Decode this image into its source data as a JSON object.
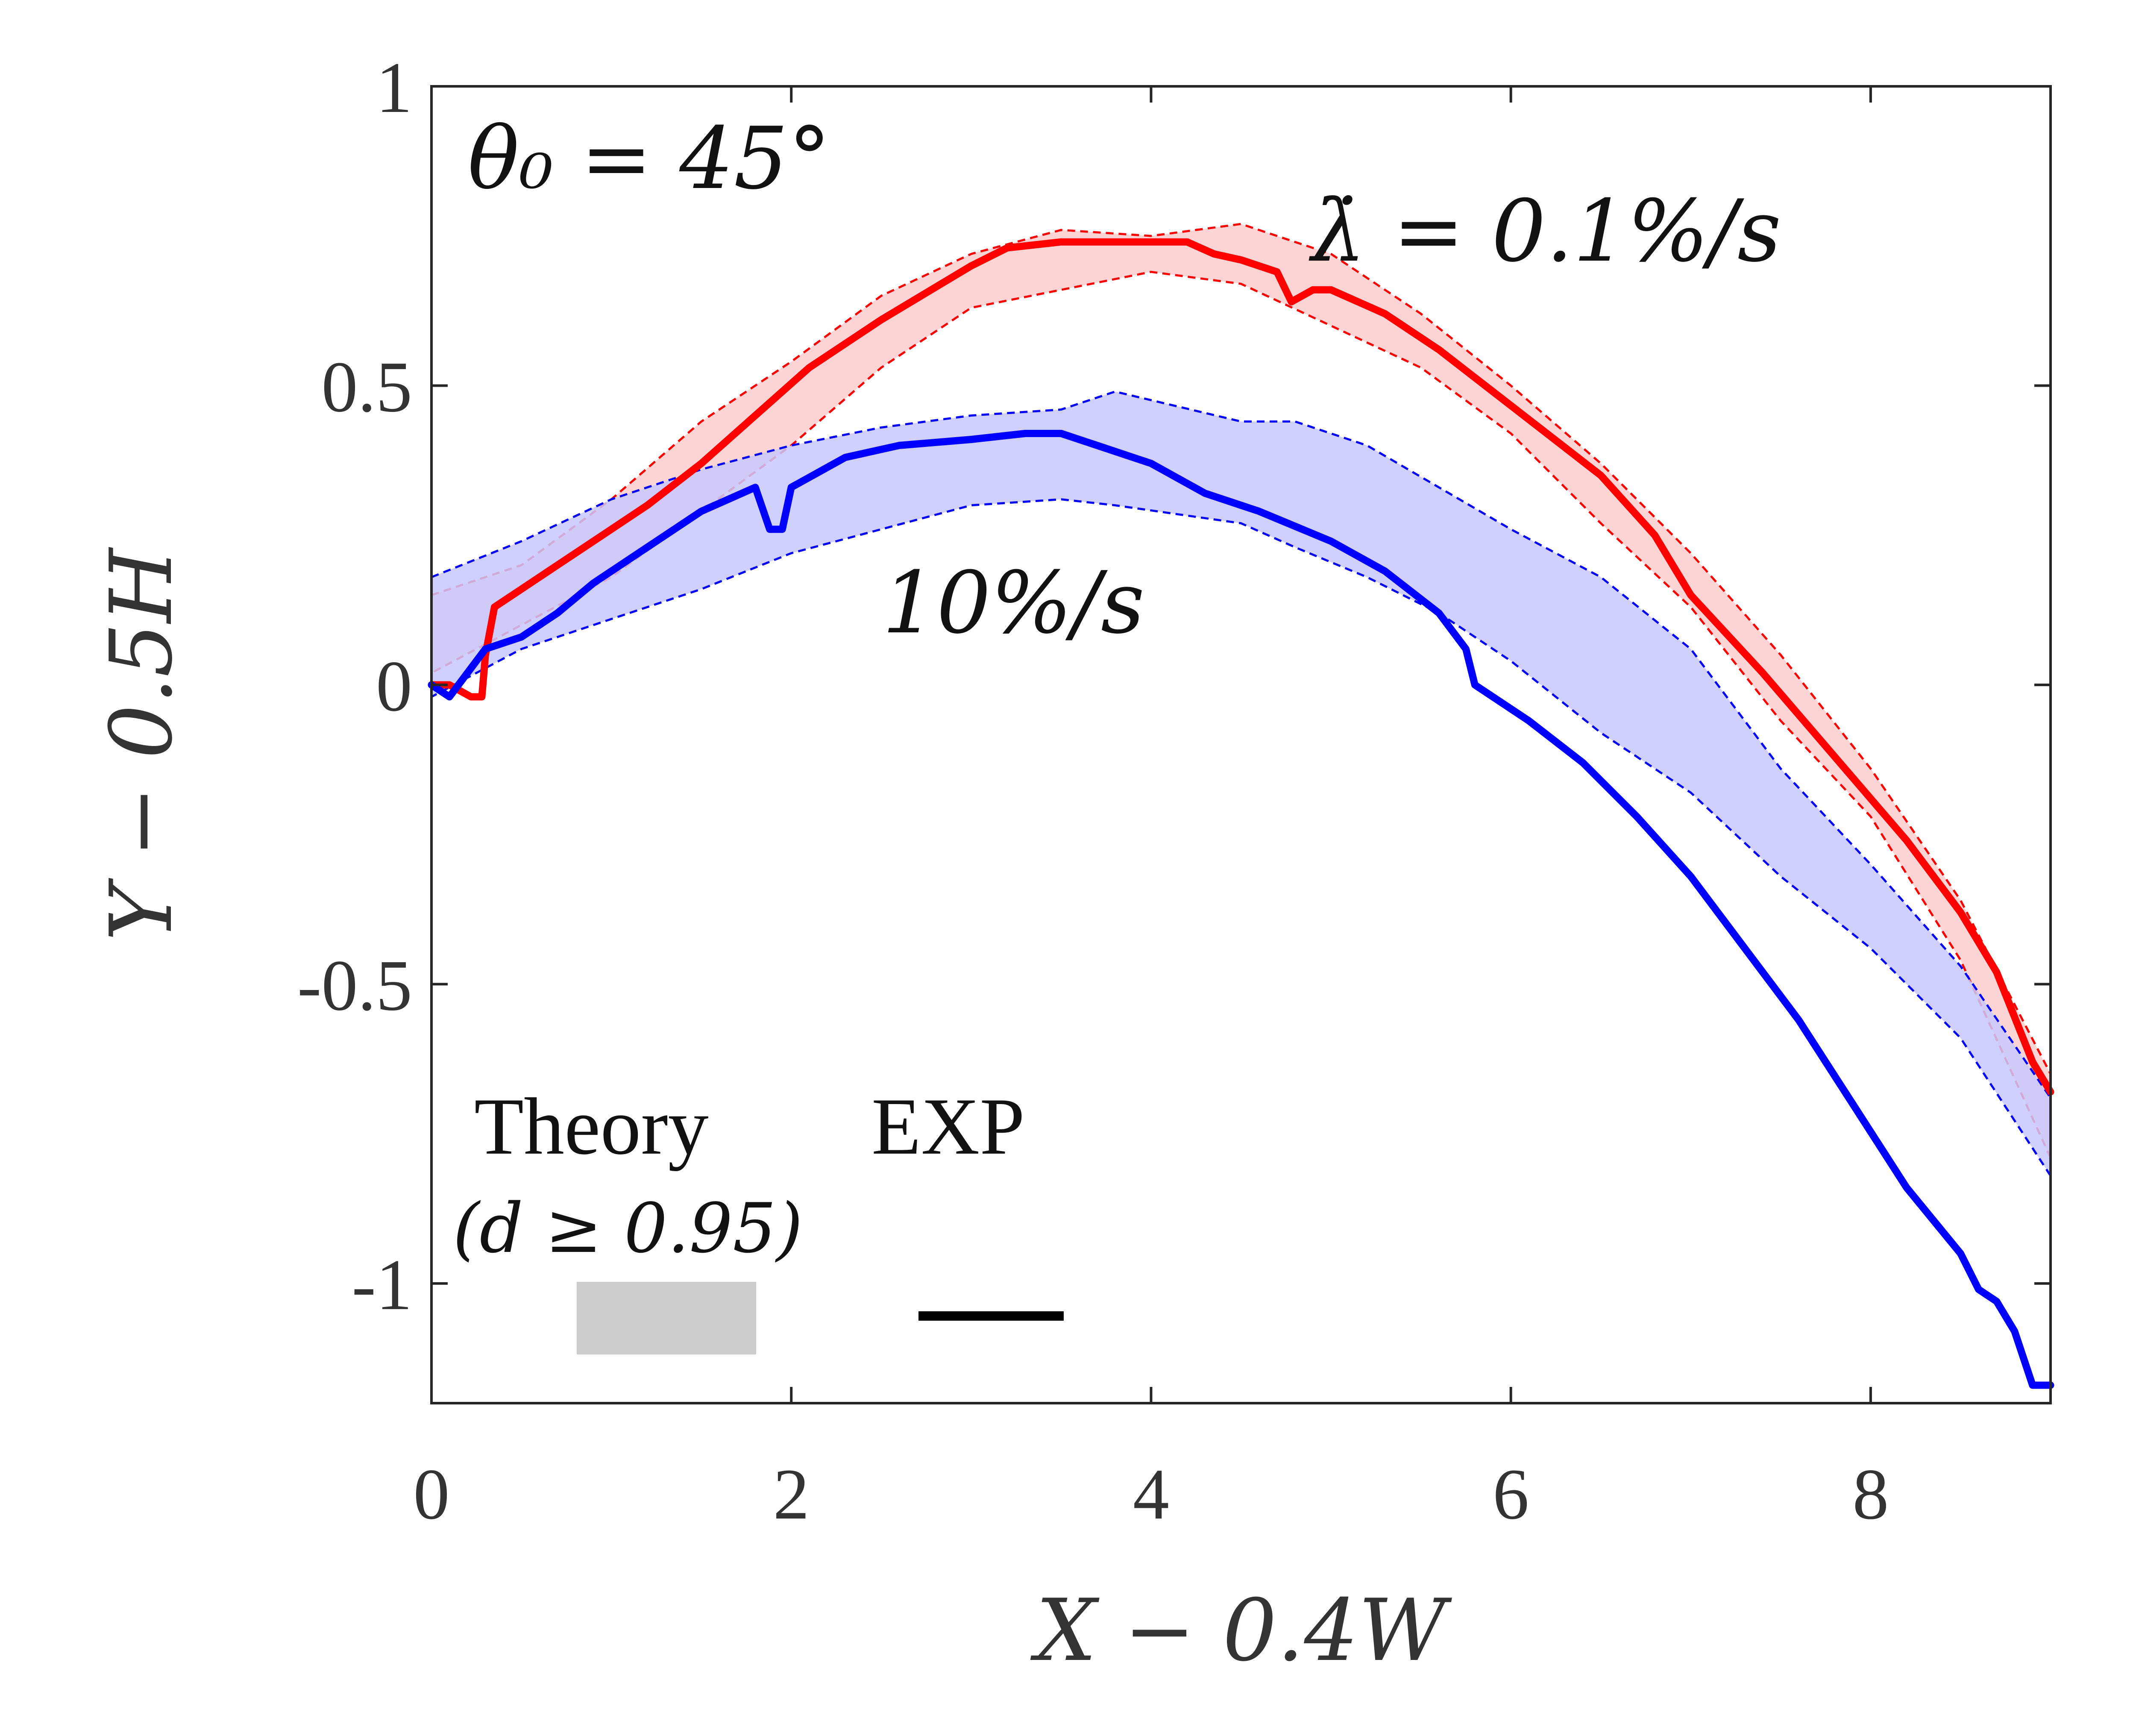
{
  "chart_data": {
    "type": "line",
    "xlabel": "X − 0.4W",
    "ylabel": "Y − 0.5H",
    "xlim": [
      0,
      9
    ],
    "ylim": [
      -1.2,
      1
    ],
    "xticks": [
      0,
      2,
      4,
      6,
      8
    ],
    "yticks": [
      1,
      0.5,
      0,
      -0.5,
      -1
    ],
    "xtick_labels": [
      "0",
      "2",
      "4",
      "6",
      "8"
    ],
    "ytick_labels": [
      "1",
      "0.5",
      "0",
      "-0.5",
      "-1"
    ],
    "grid": false,
    "annotations": {
      "theta": "θ₀ = 45°",
      "rate_slow": "λ̇ = 0.1%/s",
      "rate_fast": "10%/s"
    },
    "legend": {
      "theory_label": "Theory",
      "theory_sub": "(d ≥ 0.95)",
      "exp_label": "EXP",
      "placement": "bottom-left"
    },
    "colors": {
      "slow": "#ff0000",
      "slow_band": "#ffcccc",
      "fast": "#0000ff",
      "fast_band": "#c8c8ff",
      "theory_swatch": "#cccccc",
      "exp_swatch": "#000000"
    },
    "series": [
      {
        "name": "0.1%/s",
        "role": "experiment",
        "x": [
          0.0,
          0.1,
          0.22,
          0.28,
          0.3,
          0.35,
          0.5,
          0.7,
          0.95,
          1.2,
          1.5,
          1.8,
          2.1,
          2.5,
          3.0,
          3.2,
          3.5,
          4.0,
          4.2,
          4.35,
          4.5,
          4.7,
          4.78,
          4.9,
          5.0,
          5.3,
          5.6,
          5.9,
          6.2,
          6.5,
          6.8,
          7.0,
          7.4,
          7.8,
          8.2,
          8.5,
          8.7,
          8.9,
          9.0
        ],
        "y": [
          0.0,
          0.0,
          -0.02,
          -0.02,
          0.05,
          0.13,
          0.16,
          0.2,
          0.25,
          0.3,
          0.37,
          0.45,
          0.53,
          0.61,
          0.7,
          0.73,
          0.74,
          0.74,
          0.74,
          0.72,
          0.71,
          0.69,
          0.64,
          0.66,
          0.66,
          0.62,
          0.56,
          0.49,
          0.42,
          0.35,
          0.25,
          0.15,
          0.02,
          -0.12,
          -0.26,
          -0.38,
          -0.48,
          -0.63,
          -0.68
        ]
      },
      {
        "name": "10%/s",
        "role": "experiment",
        "x": [
          0.0,
          0.1,
          0.2,
          0.3,
          0.5,
          0.7,
          0.9,
          1.2,
          1.5,
          1.8,
          1.88,
          1.95,
          2.0,
          2.3,
          2.6,
          3.0,
          3.3,
          3.5,
          3.7,
          4.0,
          4.3,
          4.6,
          5.0,
          5.3,
          5.6,
          5.75,
          5.8,
          6.1,
          6.4,
          6.7,
          7.0,
          7.3,
          7.6,
          7.9,
          8.2,
          8.5,
          8.6,
          8.7,
          8.8,
          8.9,
          9.0
        ],
        "y": [
          0.0,
          -0.02,
          0.02,
          0.06,
          0.08,
          0.12,
          0.17,
          0.23,
          0.29,
          0.33,
          0.26,
          0.26,
          0.33,
          0.38,
          0.4,
          0.41,
          0.42,
          0.42,
          0.4,
          0.37,
          0.32,
          0.29,
          0.24,
          0.19,
          0.12,
          0.06,
          0.0,
          -0.06,
          -0.13,
          -0.22,
          -0.32,
          -0.44,
          -0.56,
          -0.7,
          -0.84,
          -0.95,
          -1.01,
          -1.03,
          -1.08,
          -1.17,
          -1.17
        ]
      }
    ],
    "bands": [
      {
        "name": "0.1%/s",
        "role": "theory",
        "x": [
          0.0,
          0.5,
          1.0,
          1.5,
          2.0,
          2.5,
          3.0,
          3.5,
          4.0,
          4.5,
          5.0,
          5.5,
          6.0,
          6.5,
          7.0,
          7.5,
          8.0,
          8.5,
          9.0
        ],
        "upper": [
          0.15,
          0.2,
          0.31,
          0.44,
          0.54,
          0.65,
          0.72,
          0.76,
          0.75,
          0.77,
          0.72,
          0.62,
          0.5,
          0.37,
          0.22,
          0.05,
          -0.14,
          -0.36,
          -0.65
        ],
        "lower": [
          0.02,
          0.1,
          0.18,
          0.29,
          0.4,
          0.53,
          0.63,
          0.66,
          0.69,
          0.67,
          0.6,
          0.53,
          0.42,
          0.27,
          0.13,
          -0.06,
          -0.22,
          -0.46,
          -0.79
        ]
      },
      {
        "name": "10%/s",
        "role": "theory",
        "x": [
          0.0,
          0.5,
          1.0,
          1.5,
          2.0,
          2.5,
          3.0,
          3.5,
          3.8,
          4.5,
          4.8,
          5.2,
          5.6,
          6.0,
          6.5,
          7.0,
          7.5,
          8.0,
          8.5,
          9.0
        ],
        "upper": [
          0.18,
          0.24,
          0.31,
          0.36,
          0.4,
          0.43,
          0.45,
          0.46,
          0.49,
          0.44,
          0.44,
          0.4,
          0.33,
          0.26,
          0.18,
          0.06,
          -0.14,
          -0.3,
          -0.47,
          -0.69
        ],
        "lower": [
          -0.02,
          0.06,
          0.11,
          0.16,
          0.22,
          0.26,
          0.3,
          0.31,
          0.3,
          0.27,
          0.23,
          0.18,
          0.12,
          0.04,
          -0.08,
          -0.18,
          -0.32,
          -0.44,
          -0.59,
          -0.82
        ]
      }
    ]
  }
}
